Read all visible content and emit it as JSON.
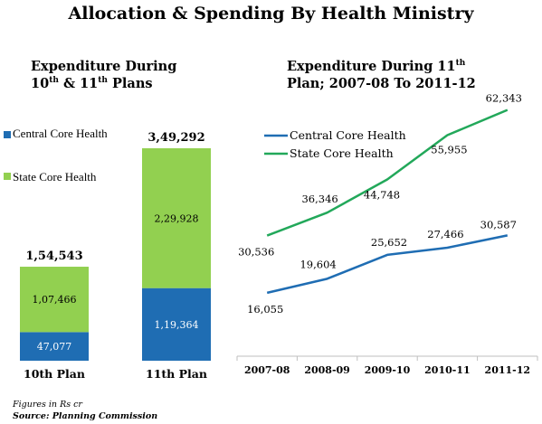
{
  "title": "Allocation & Spending By Health Ministry",
  "colors": {
    "central": "#1f6db3",
    "state": "#92d050",
    "central_line": "#1f6db3",
    "state_line": "#22a85a",
    "axis": "#bfbfbf"
  },
  "footnote": {
    "units": "Figures in Rs cr",
    "source": "Source: Planning Commission"
  },
  "chart_data": [
    {
      "type": "bar",
      "stacked": true,
      "title_line1": "Expenditure During",
      "title_line2_a": "10",
      "title_line2_sup1": "th",
      "title_line2_b": " & 11",
      "title_line2_sup2": "th",
      "title_line2_c": " Plans",
      "categories": [
        "10th Plan",
        "11th Plan"
      ],
      "series": [
        {
          "name": "Central Core Health",
          "values": [
            47077,
            119364
          ],
          "labels": [
            "47,077",
            "1,19,364"
          ]
        },
        {
          "name": "State Core Health",
          "values": [
            107466,
            229928
          ],
          "labels": [
            "1,07,466",
            "2,29,928"
          ]
        }
      ],
      "totals": [
        154543,
        349292
      ],
      "total_labels": [
        "1,54,543",
        "3,49,292"
      ],
      "ylim": [
        0,
        349292
      ]
    },
    {
      "type": "line",
      "title_line1": "Expenditure During 11",
      "title_sup": "th",
      "title_line2": "Plan; 2007-08 To 2011-12",
      "x": [
        "2007-08",
        "2008-09",
        "2009-10",
        "2010-11",
        "2011-12"
      ],
      "series": [
        {
          "name": "Central Core Health",
          "values": [
            16055,
            19604,
            25652,
            27466,
            30587
          ],
          "labels": [
            "16,055",
            "19,604",
            "25,652",
            "27,466",
            "30,587"
          ]
        },
        {
          "name": "State Core Health",
          "values": [
            30536,
            36346,
            44748,
            55955,
            62343
          ],
          "labels": [
            "30,536",
            "36,346",
            "44,748",
            "55,955",
            "62,343"
          ]
        }
      ],
      "ylim": [
        0,
        65000
      ],
      "legend": "top-left"
    }
  ]
}
